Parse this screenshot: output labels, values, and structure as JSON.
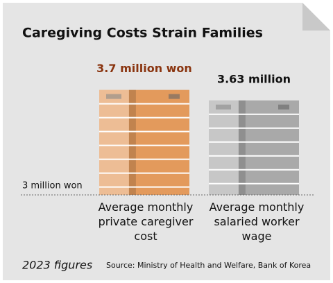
{
  "chart_data": {
    "type": "bar",
    "title": "Caregiving Costs Strain Families",
    "categories": [
      "Average monthly private caregiver cost",
      "Average monthly salaried worker wage"
    ],
    "values": [
      3.7,
      3.63
    ],
    "value_labels": [
      "3.7 million won",
      "3.63 million"
    ],
    "colors": [
      "#e39a5c",
      "#a9a9a9"
    ],
    "label_colors": [
      "#8a3510",
      "#111111"
    ],
    "ylim": [
      3,
      3.8
    ],
    "reference_lines": [
      {
        "value": 3,
        "label": "3 million won"
      }
    ],
    "footnote": "2023 figures",
    "source": "Source: Ministry of Health and Welfare, Bank of Korea"
  }
}
